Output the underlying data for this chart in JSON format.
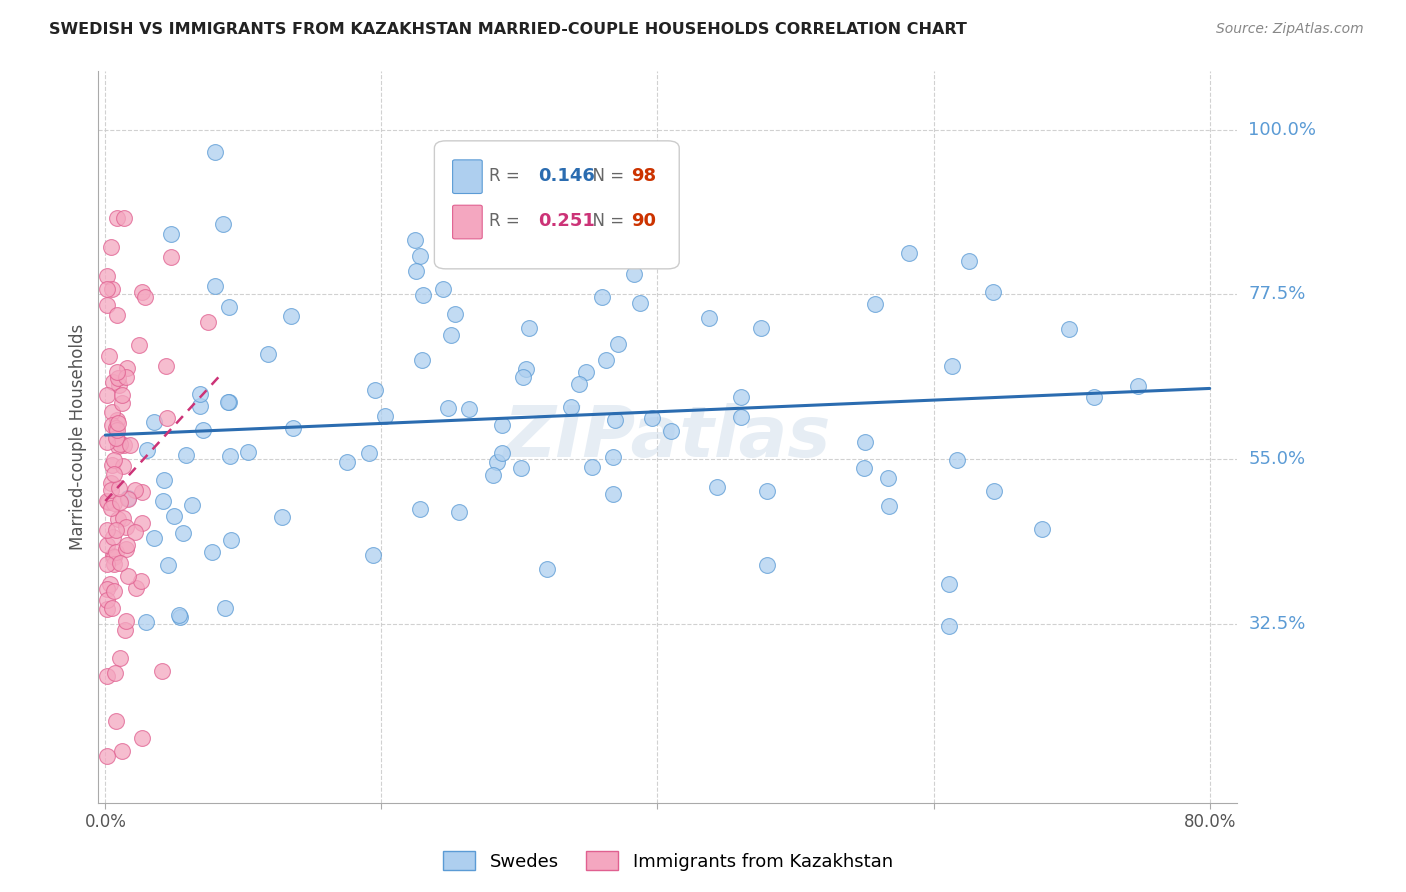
{
  "title": "SWEDISH VS IMMIGRANTS FROM KAZAKHSTAN MARRIED-COUPLE HOUSEHOLDS CORRELATION CHART",
  "source": "Source: ZipAtlas.com",
  "ylabel": "Married-couple Households",
  "ytick_labels": [
    "100.0%",
    "77.5%",
    "55.0%",
    "32.5%"
  ],
  "ytick_values": [
    1.0,
    0.775,
    0.55,
    0.325
  ],
  "ymin": 0.08,
  "ymax": 1.08,
  "xmin": -0.005,
  "xmax": 0.82,
  "legend_R_blue": "0.146",
  "legend_N_blue": "98",
  "legend_R_pink": "0.251",
  "legend_N_pink": "90",
  "legend_label_blue": "Swedes",
  "legend_label_pink": "Immigrants from Kazakhstan",
  "blue_color": "#aecfef",
  "pink_color": "#f4a7c0",
  "blue_edge_color": "#5b9bd5",
  "pink_edge_color": "#e06090",
  "blue_line_color": "#2b6cb0",
  "pink_line_color": "#cc3377",
  "axis_label_color": "#5b9bd5",
  "watermark_text": "ZIPatlas",
  "grid_color": "#cccccc"
}
